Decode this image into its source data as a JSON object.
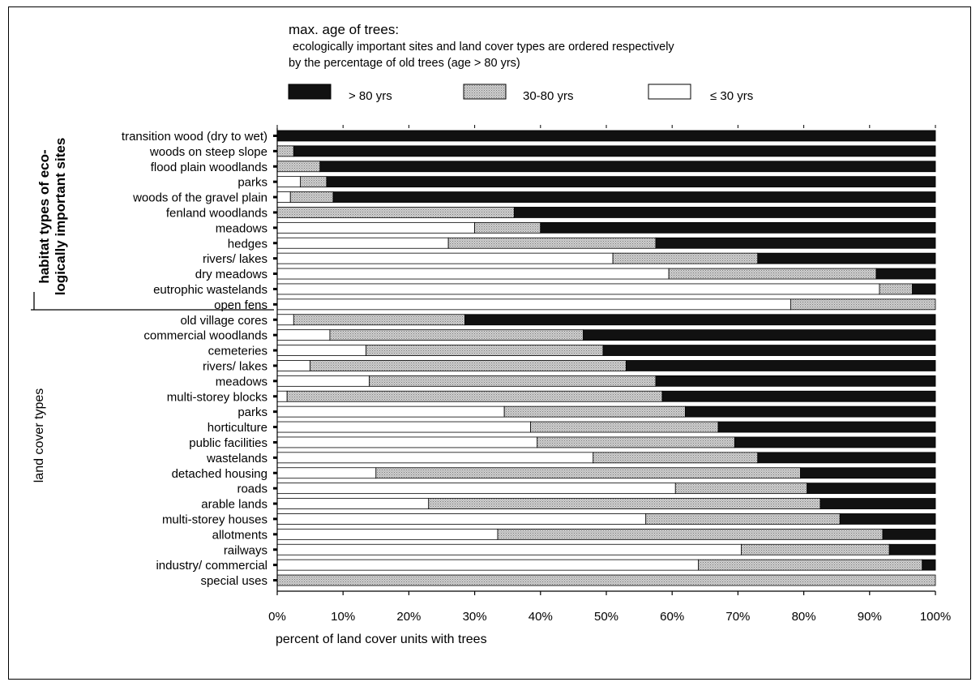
{
  "chart_data": {
    "type": "bar",
    "stacked": true,
    "orientation": "horizontal",
    "title": "max. age of trees:",
    "subtitle_lines": [
      "ecologically important sites and land cover types are ordered respectively",
      "by the percentage of old trees (age > 80 yrs)"
    ],
    "xlabel": "percent of land cover units with trees",
    "xlim": [
      0,
      100
    ],
    "x_ticks": [
      "0%",
      "10%",
      "20%",
      "30%",
      "40%",
      "50%",
      "60%",
      "70%",
      "80%",
      "90%",
      "100%"
    ],
    "legend": {
      "placement": "top",
      "entries": [
        {
          "key": "old",
          "label": "> 80 yrs",
          "color": "#111111"
        },
        {
          "key": "mid",
          "label": "30-80 yrs",
          "color": "#b8b8b8"
        },
        {
          "key": "young",
          "label": "≤ 30 yrs",
          "color": "#ffffff"
        }
      ]
    },
    "groups": [
      {
        "name": "habitat types of eco-logically important sites",
        "label_lines": [
          "habitat types of eco-",
          "logically important sites"
        ],
        "categories": [
          "transition wood (dry to wet)",
          "woods on steep slope",
          "flood plain woodlands",
          "parks",
          "woods of the gravel plain",
          "fenland woodlands",
          "meadows",
          "hedges",
          "rivers/ lakes",
          "dry meadows",
          "eutrophic wastelands",
          "open fens"
        ],
        "series": [
          {
            "name": "≤ 30 yrs",
            "values": [
              0,
              0,
              0,
              3.5,
              2,
              0,
              30,
              26,
              51,
              59.5,
              91.5,
              78
            ]
          },
          {
            "name": "30-80 yrs",
            "values": [
              0,
              2.5,
              6.5,
              4,
              6.5,
              36,
              10,
              31.5,
              22,
              31.5,
              5,
              22
            ]
          },
          {
            "name": "> 80 yrs",
            "values": [
              100,
              97.5,
              93.5,
              92.5,
              91.5,
              64,
              60,
              42.5,
              27,
              9,
              3.5,
              0
            ]
          }
        ]
      },
      {
        "name": "land cover types",
        "label_lines": [
          "land  cover types"
        ],
        "categories": [
          "old village cores",
          "commercial woodlands",
          "cemeteries",
          "rivers/ lakes",
          "meadows",
          "multi-storey blocks",
          "parks",
          "horticulture",
          "public facilities",
          "wastelands",
          "detached housing",
          "roads",
          "arable lands",
          "multi-storey houses",
          "allotments",
          "railways",
          "industry/ commercial",
          "special uses"
        ],
        "series": [
          {
            "name": "≤ 30 yrs",
            "values": [
              2.5,
              8,
              13.5,
              5,
              14,
              1.5,
              34.5,
              38.5,
              39.5,
              48,
              15,
              60.5,
              23,
              56,
              33.5,
              70.5,
              64,
              0
            ]
          },
          {
            "name": "30-80 yrs",
            "values": [
              26,
              38.5,
              36,
              48,
              43.5,
              57,
              27.5,
              28.5,
              30,
              25,
              64.5,
              20,
              59.5,
              29.5,
              58.5,
              22.5,
              34,
              100
            ]
          },
          {
            "name": "> 80 yrs",
            "values": [
              71.5,
              53.5,
              50.5,
              47,
              42.5,
              41.5,
              38,
              33,
              30.5,
              27,
              20.5,
              19.5,
              17.5,
              14.5,
              8,
              7,
              2,
              0
            ]
          }
        ]
      }
    ]
  }
}
